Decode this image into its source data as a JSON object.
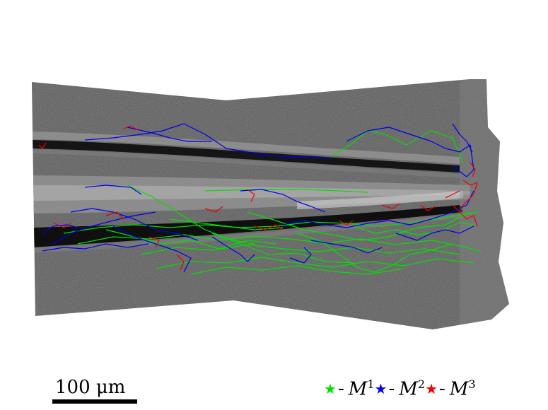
{
  "scalebar": {
    "label": "100 μm"
  },
  "legend": {
    "items": [
      {
        "symbol": "★",
        "dash": "-",
        "base": "M",
        "sup": "1",
        "color": "#00e000"
      },
      {
        "symbol": "★",
        "dash": "-",
        "base": "M",
        "sup": "2",
        "color": "#0000ee"
      },
      {
        "symbol": "★",
        "dash": "-",
        "base": "M",
        "sup": "3",
        "color": "#ee0000"
      }
    ]
  },
  "colors": {
    "background": "#ffffff",
    "tissue": "#5a5a5a",
    "green": "#00e000",
    "blue": "#0000ee",
    "red": "#ee0000"
  }
}
